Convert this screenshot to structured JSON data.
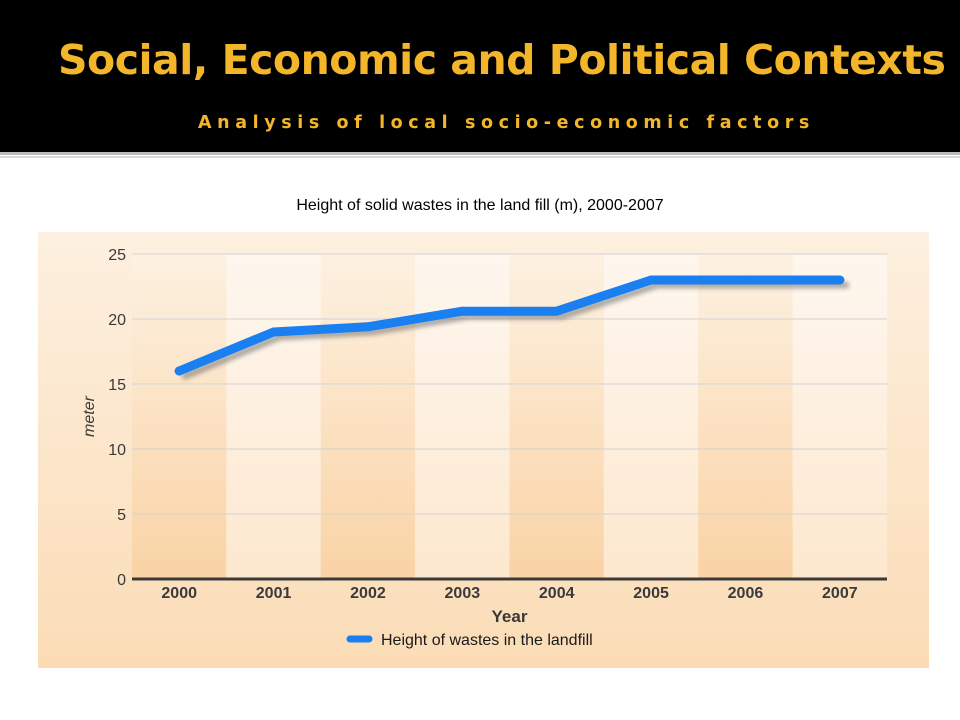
{
  "slide": {
    "title": "Social, Economic and Political Contexts",
    "subtitle": "Analysis of local socio-economic factors"
  },
  "colors": {
    "header_bg": "#000000",
    "title_text": "#f3b52a",
    "line": "#1a7ff0",
    "panel_bg": "#fde9cf"
  },
  "chart_data": {
    "type": "line",
    "title": "Height of solid wastes in the land fill (m), 2000-2007",
    "xlabel": "Year",
    "ylabel": "meter",
    "categories": [
      "2000",
      "2001",
      "2002",
      "2003",
      "2004",
      "2005",
      "2006",
      "2007"
    ],
    "series": [
      {
        "name": "Height of wastes in the landfill",
        "values": [
          16,
          19,
          19.4,
          20.6,
          20.6,
          23,
          23,
          23
        ]
      }
    ],
    "ylim": [
      0,
      25
    ],
    "yticks": [
      "0",
      "5",
      "10",
      "15",
      "20",
      "25"
    ],
    "grid": true,
    "legend": "bottom-center"
  }
}
